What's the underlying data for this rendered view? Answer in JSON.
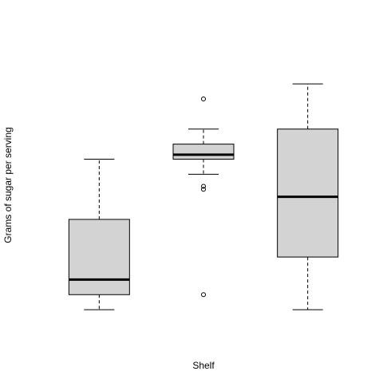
{
  "chart_data": {
    "type": "boxplot",
    "xlabel": "Shelf",
    "ylabel": "Grams of sugar per serving",
    "title": "",
    "axes_visible": false,
    "ylim": [
      -1,
      17.5
    ],
    "series": [
      {
        "min": 0,
        "q1": 1,
        "median": 2,
        "q3": 6,
        "max": 10,
        "outliers": []
      },
      {
        "min": 9,
        "q1": 10,
        "median": 10.3,
        "q3": 11,
        "max": 12,
        "outliers": [
          14,
          8,
          8.2,
          1
        ]
      },
      {
        "min": 0,
        "q1": 3.5,
        "median": 7.5,
        "q3": 12,
        "max": 15,
        "outliers": []
      }
    ],
    "colors": {
      "box_fill": "#d3d3d3",
      "stroke": "#000000"
    }
  }
}
